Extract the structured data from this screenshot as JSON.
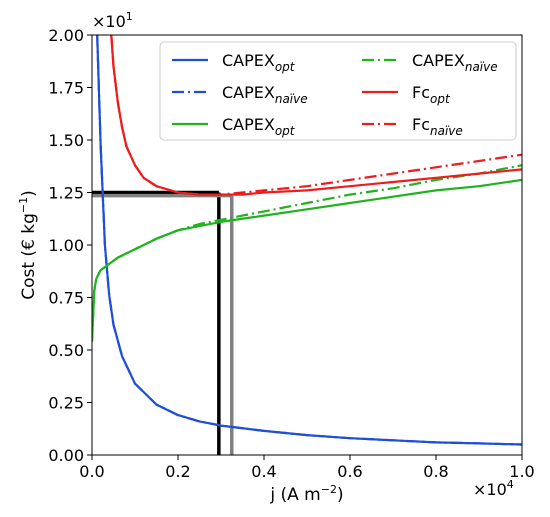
{
  "chart_data": {
    "type": "line",
    "xlabel_main": "j (A m",
    "xlabel_exp": "−2",
    "xlabel_close": ")",
    "ylabel_main": "Cost (€ kg",
    "ylabel_exp": "−1",
    "ylabel_close": ")",
    "x_offset_base": "×10",
    "x_offset_exp": "4",
    "y_offset_base": "×10",
    "y_offset_exp": "1",
    "xlim": [
      0.0,
      1.0
    ],
    "ylim": [
      0.0,
      2.0
    ],
    "xticks": [
      "0.0",
      "0.2",
      "0.4",
      "0.6",
      "0.8",
      "1.0"
    ],
    "yticks": [
      "0.00",
      "0.25",
      "0.50",
      "0.75",
      "1.00",
      "1.25",
      "1.50",
      "1.75",
      "2.00"
    ],
    "legend_placement": "top-right",
    "series": [
      {
        "base": "CAPEX",
        "sub": "opt",
        "color": "#1f4fd8",
        "dash": "solid",
        "x": [
          0.012,
          0.02,
          0.03,
          0.04,
          0.05,
          0.07,
          0.1,
          0.15,
          0.2,
          0.25,
          0.3,
          0.4,
          0.5,
          0.6,
          0.7,
          0.8,
          0.9,
          1.0
        ],
        "y": [
          2.0,
          1.48,
          1.0,
          0.76,
          0.62,
          0.47,
          0.34,
          0.24,
          0.19,
          0.16,
          0.14,
          0.115,
          0.095,
          0.08,
          0.07,
          0.06,
          0.055,
          0.05
        ]
      },
      {
        "base": "CAPEX",
        "sub": "naïve",
        "color": "#1f4fd8",
        "dash": "dashdot",
        "x": [
          0.012,
          0.02,
          0.03,
          0.04,
          0.05,
          0.07,
          0.1,
          0.15,
          0.2,
          0.25,
          0.3,
          0.4,
          0.5,
          0.6,
          0.7,
          0.8,
          0.9,
          1.0
        ],
        "y": [
          2.0,
          1.48,
          1.0,
          0.76,
          0.62,
          0.47,
          0.34,
          0.24,
          0.19,
          0.16,
          0.14,
          0.115,
          0.095,
          0.08,
          0.07,
          0.06,
          0.055,
          0.05
        ]
      },
      {
        "base": "CAPEX",
        "sub": "opt",
        "color": "#1fb31f",
        "dash": "solid",
        "x": [
          0.0,
          0.005,
          0.01,
          0.02,
          0.04,
          0.06,
          0.08,
          0.1,
          0.15,
          0.2,
          0.25,
          0.3,
          0.4,
          0.5,
          0.6,
          0.7,
          0.8,
          0.9,
          1.0
        ],
        "y": [
          0.54,
          0.78,
          0.84,
          0.88,
          0.91,
          0.94,
          0.96,
          0.98,
          1.03,
          1.07,
          1.09,
          1.11,
          1.14,
          1.17,
          1.2,
          1.23,
          1.26,
          1.28,
          1.31
        ]
      },
      {
        "base": "CAPEX",
        "sub": "naïve",
        "color": "#1fb31f",
        "dash": "dashdot",
        "x": [
          0.0,
          0.005,
          0.01,
          0.02,
          0.04,
          0.06,
          0.08,
          0.1,
          0.15,
          0.2,
          0.25,
          0.3,
          0.4,
          0.5,
          0.6,
          0.7,
          0.8,
          0.9,
          1.0
        ],
        "y": [
          0.54,
          0.78,
          0.84,
          0.88,
          0.91,
          0.94,
          0.96,
          0.98,
          1.03,
          1.07,
          1.1,
          1.12,
          1.16,
          1.2,
          1.24,
          1.27,
          1.31,
          1.34,
          1.38
        ]
      },
      {
        "base": "Fc",
        "sub": "opt",
        "color": "#ee1c1c",
        "dash": "solid",
        "x": [
          0.045,
          0.05,
          0.06,
          0.07,
          0.08,
          0.1,
          0.12,
          0.15,
          0.2,
          0.25,
          0.3,
          0.35,
          0.4,
          0.5,
          0.6,
          0.7,
          0.8,
          0.9,
          1.0
        ],
        "y": [
          2.0,
          1.85,
          1.68,
          1.56,
          1.47,
          1.38,
          1.32,
          1.28,
          1.25,
          1.24,
          1.24,
          1.24,
          1.25,
          1.26,
          1.28,
          1.3,
          1.32,
          1.34,
          1.36
        ]
      },
      {
        "base": "Fc",
        "sub": "naïve",
        "color": "#ee1c1c",
        "dash": "dashdot",
        "x": [
          0.045,
          0.05,
          0.06,
          0.07,
          0.08,
          0.1,
          0.12,
          0.15,
          0.2,
          0.25,
          0.3,
          0.35,
          0.4,
          0.5,
          0.6,
          0.7,
          0.8,
          0.9,
          1.0
        ],
        "y": [
          2.0,
          1.85,
          1.68,
          1.56,
          1.47,
          1.38,
          1.32,
          1.28,
          1.25,
          1.24,
          1.24,
          1.25,
          1.26,
          1.28,
          1.31,
          1.34,
          1.37,
          1.4,
          1.43
        ]
      }
    ],
    "markers": [
      {
        "x": 0.295,
        "y": 1.25,
        "color": "#000000"
      },
      {
        "x": 0.325,
        "y": 1.235,
        "color": "#808080"
      }
    ]
  }
}
